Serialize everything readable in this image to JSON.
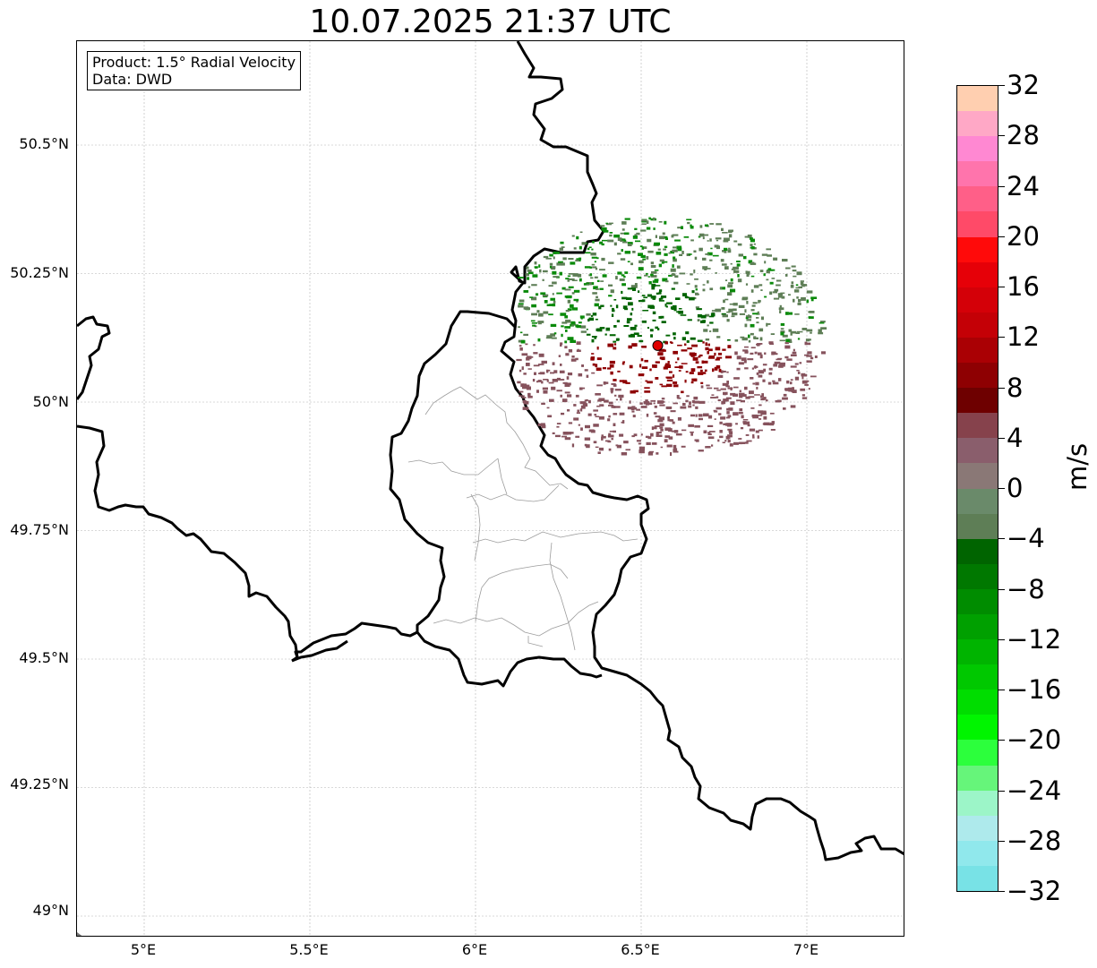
{
  "title": "10.07.2025 21:37 UTC",
  "info": {
    "product": "Product: 1.5° Radial Velocity",
    "data_source": "Data: DWD"
  },
  "latitude_labels": [
    "50.5°N",
    "50.25°N",
    "50°N",
    "49.75°N",
    "49.5°N",
    "49.25°N",
    "49°N"
  ],
  "longitude_labels": [
    "5°E",
    "5.5°E",
    "6°E",
    "6.5°E",
    "7°E"
  ],
  "radar_site": {
    "lat": 50.11,
    "lon": 6.55,
    "color": "#e00000"
  },
  "colorbar": {
    "unit": "m/s",
    "min": -32,
    "max": 32,
    "tick_labels": [
      "32",
      "28",
      "24",
      "20",
      "16",
      "12",
      "8",
      "4",
      "0",
      "−4",
      "−8",
      "−12",
      "−16",
      "−20",
      "−24",
      "−28",
      "−32"
    ],
    "colors_top_to_bottom": [
      "#ffcfb0",
      "#ffa8c6",
      "#ff88d2",
      "#ff74ac",
      "#ff5f88",
      "#ff4a68",
      "#ff0a0a",
      "#e60008",
      "#d40008",
      "#c40006",
      "#aa0004",
      "#8e0002",
      "#6e0000",
      "#86424c",
      "#8a5e6c",
      "#8a7876",
      "#6a8a6a",
      "#5e7e56",
      "#006400",
      "#007800",
      "#008c00",
      "#00a000",
      "#00b400",
      "#00c800",
      "#00dd00",
      "#00f500",
      "#2cff3c",
      "#66f57a",
      "#9cf5c8",
      "#aeeaec",
      "#90e8ec",
      "#78e2e6"
    ]
  },
  "map_colors": {
    "border": "#000000",
    "district_lines": "#9c9c9c",
    "gridlines": "#b4b4b4",
    "velocity_incoming_dark": "#006400",
    "velocity_incoming": "#0a8a0a",
    "velocity_incoming_muted": "#5e7e56",
    "velocity_outgoing": "#8e0002",
    "velocity_outgoing_muted": "#86525c"
  }
}
